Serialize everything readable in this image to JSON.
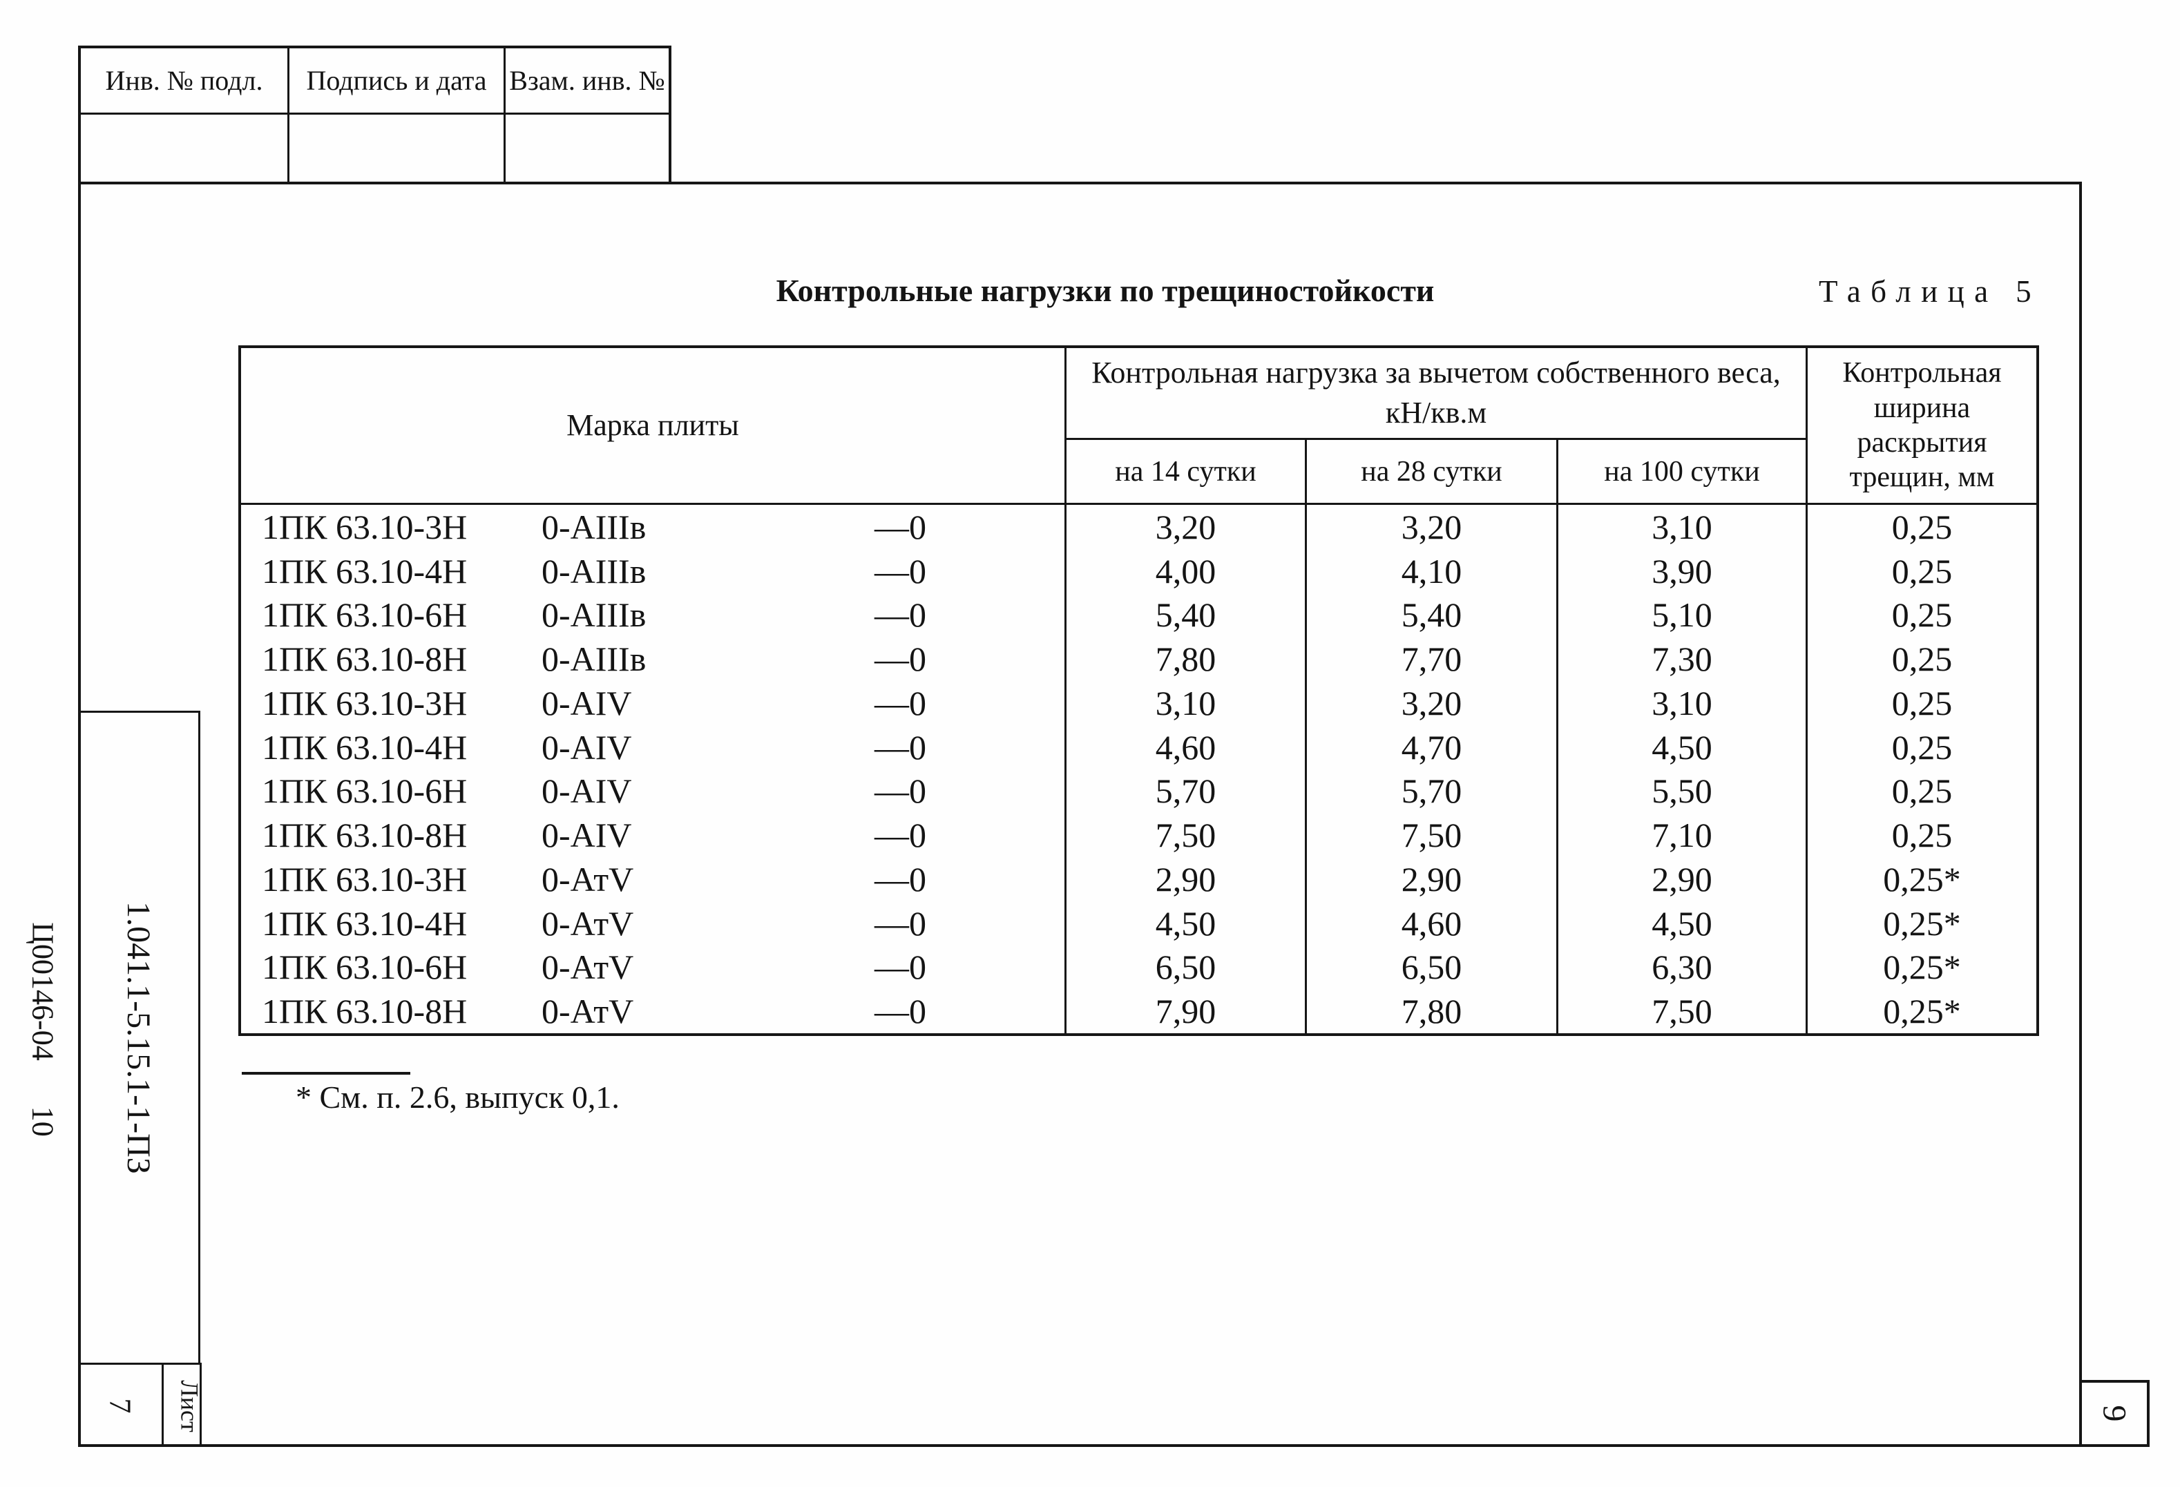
{
  "document": {
    "title": "Контрольные нагрузки по трещиностойкости",
    "table_caption": "Таблица 5",
    "footnote": "* См. п. 2.6, выпуск 0,1."
  },
  "top_stamp": {
    "headers": [
      "Инв. № подл.",
      "Подпись и дата",
      "Взам. инв. №"
    ]
  },
  "side_stamp": {
    "doc_code": "Ц00146-04      10",
    "designation": "1.041.1-5.15.1-1-ПЗ",
    "sheet_label": "Лист",
    "sheet_number": "7",
    "page_number": "9"
  },
  "table": {
    "mark_header": "Марка плиты",
    "load_header_lines": [
      "Контрольная нагрузка за вычетом собственного веса,",
      "кН/кв.м"
    ],
    "sub_headers": [
      "на 14 сутки",
      "на 28 сутки",
      "на 100 сутки"
    ],
    "crack_header_lines": [
      "Контрольная",
      "ширина",
      "раскрытия",
      "трещин, мм"
    ],
    "rows": [
      {
        "mark": "1ПК 63.10-3Н",
        "reinf": "0-АIIIв",
        "zero": "—0",
        "d14": "3,20",
        "d28": "3,20",
        "d100": "3,10",
        "crack": "0,25"
      },
      {
        "mark": "1ПК 63.10-4Н",
        "reinf": "0-АIIIв",
        "zero": "—0",
        "d14": "4,00",
        "d28": "4,10",
        "d100": "3,90",
        "crack": "0,25"
      },
      {
        "mark": "1ПК 63.10-6Н",
        "reinf": "0-АIIIв",
        "zero": "—0",
        "d14": "5,40",
        "d28": "5,40",
        "d100": "5,10",
        "crack": "0,25"
      },
      {
        "mark": "1ПК 63.10-8Н",
        "reinf": "0-АIIIв",
        "zero": "—0",
        "d14": "7,80",
        "d28": "7,70",
        "d100": "7,30",
        "crack": "0,25"
      },
      {
        "mark": "1ПК 63.10-3Н",
        "reinf": "0-АIV",
        "zero": "—0",
        "d14": "3,10",
        "d28": "3,20",
        "d100": "3,10",
        "crack": "0,25"
      },
      {
        "mark": "1ПК 63.10-4Н",
        "reinf": "0-АIV",
        "zero": "—0",
        "d14": "4,60",
        "d28": "4,70",
        "d100": "4,50",
        "crack": "0,25"
      },
      {
        "mark": "1ПК 63.10-6Н",
        "reinf": "0-АIV",
        "zero": "—0",
        "d14": "5,70",
        "d28": "5,70",
        "d100": "5,50",
        "crack": "0,25"
      },
      {
        "mark": "1ПК 63.10-8Н",
        "reinf": "0-АIV",
        "zero": "—0",
        "d14": "7,50",
        "d28": "7,50",
        "d100": "7,10",
        "crack": "0,25"
      },
      {
        "mark": "1ПК 63.10-3Н",
        "reinf": "0-АтV",
        "zero": "—0",
        "d14": "2,90",
        "d28": "2,90",
        "d100": "2,90",
        "crack": "0,25*"
      },
      {
        "mark": "1ПК 63.10-4Н",
        "reinf": "0-АтV",
        "zero": "—0",
        "d14": "4,50",
        "d28": "4,60",
        "d100": "4,50",
        "crack": "0,25*"
      },
      {
        "mark": "1ПК 63.10-6Н",
        "reinf": "0-АтV",
        "zero": "—0",
        "d14": "6,50",
        "d28": "6,50",
        "d100": "6,30",
        "crack": "0,25*"
      },
      {
        "mark": "1ПК 63.10-8Н",
        "reinf": "0-АтV",
        "zero": "—0",
        "d14": "7,90",
        "d28": "7,80",
        "d100": "7,50",
        "crack": "0,25*"
      }
    ]
  }
}
